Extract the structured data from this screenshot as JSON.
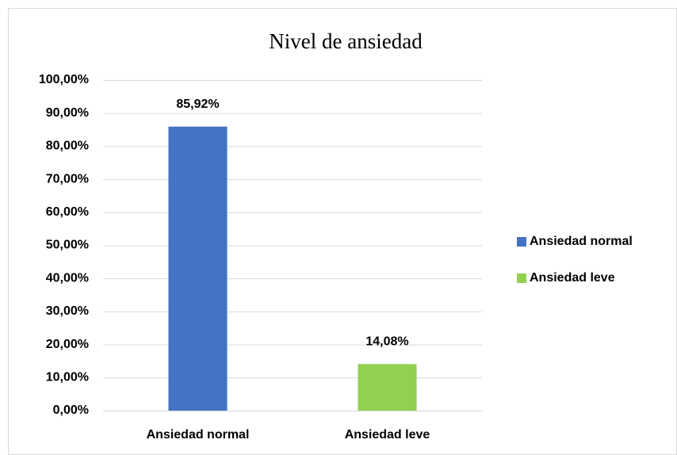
{
  "chart_data": {
    "type": "bar",
    "title": "Nivel de ansiedad",
    "categories": [
      "Ansiedad normal",
      "Ansiedad leve"
    ],
    "values": [
      85.92,
      14.08
    ],
    "value_labels": [
      "85,92%",
      "14,08%"
    ],
    "colors": [
      "#4472c4",
      "#92d050"
    ],
    "ylim": [
      0,
      100
    ],
    "yticks": [
      {
        "value": 0,
        "label": "0,00%"
      },
      {
        "value": 10,
        "label": "10,00%"
      },
      {
        "value": 20,
        "label": "20,00%"
      },
      {
        "value": 30,
        "label": "30,00%"
      },
      {
        "value": 40,
        "label": "40,00%"
      },
      {
        "value": 50,
        "label": "50,00%"
      },
      {
        "value": 60,
        "label": "60,00%"
      },
      {
        "value": 70,
        "label": "70,00%"
      },
      {
        "value": 80,
        "label": "80,00%"
      },
      {
        "value": 90,
        "label": "90,00%"
      },
      {
        "value": 100,
        "label": "100,00%"
      }
    ],
    "grid": true,
    "legend": "right"
  }
}
